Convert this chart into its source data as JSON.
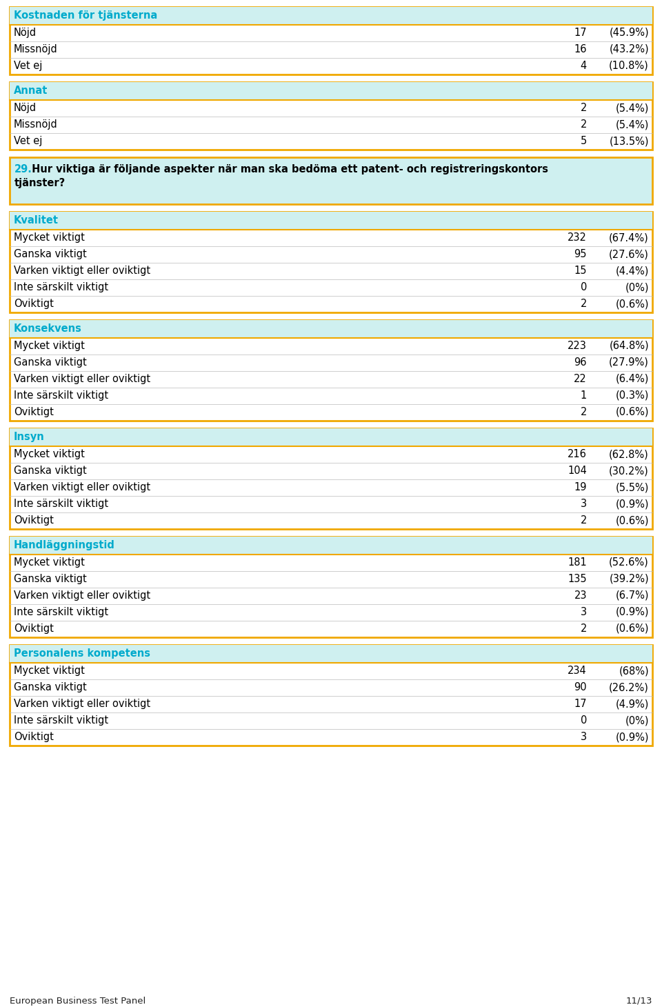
{
  "bg_color": "#ffffff",
  "header_bg": "#cff0f0",
  "border_color": "#f0a800",
  "header_text_color": "#00aacc",
  "row_text_color": "#000000",
  "footer_left": "European Business Test Panel",
  "footer_right": "11/13",
  "sections": [
    {
      "type": "normal",
      "header": "Kostnaden för tjänsterna",
      "rows": [
        {
          "label": "Nöjd",
          "value": "17",
          "pct": "(45.9%)"
        },
        {
          "label": "Missnöjd",
          "value": "16",
          "pct": "(43.2%)"
        },
        {
          "label": "Vet ej",
          "value": "4",
          "pct": "(10.8%)"
        }
      ]
    },
    {
      "type": "normal",
      "header": "Annat",
      "rows": [
        {
          "label": "Nöjd",
          "value": "2",
          "pct": "(5.4%)"
        },
        {
          "label": "Missnöjd",
          "value": "2",
          "pct": "(5.4%)"
        },
        {
          "label": "Vet ej",
          "value": "5",
          "pct": "(13.5%)"
        }
      ]
    },
    {
      "type": "question",
      "header": "29.",
      "header_rest": " Hur viktiga är följande aspekter när man ska bedöma ett patent- och registreringskontors tjänster?",
      "line2": "tjänster?",
      "rows": []
    },
    {
      "type": "normal",
      "header": "Kvalitet",
      "rows": [
        {
          "label": "Mycket viktigt",
          "value": "232",
          "pct": "(67.4%)"
        },
        {
          "label": "Ganska viktigt",
          "value": "95",
          "pct": "(27.6%)"
        },
        {
          "label": "Varken viktigt eller oviktigt",
          "value": "15",
          "pct": "(4.4%)"
        },
        {
          "label": "Inte särskilt viktigt",
          "value": "0",
          "pct": "(0%)"
        },
        {
          "label": "Oviktigt",
          "value": "2",
          "pct": "(0.6%)"
        }
      ]
    },
    {
      "type": "normal",
      "header": "Konsekvens",
      "rows": [
        {
          "label": "Mycket viktigt",
          "value": "223",
          "pct": "(64.8%)"
        },
        {
          "label": "Ganska viktigt",
          "value": "96",
          "pct": "(27.9%)"
        },
        {
          "label": "Varken viktigt eller oviktigt",
          "value": "22",
          "pct": "(6.4%)"
        },
        {
          "label": "Inte särskilt viktigt",
          "value": "1",
          "pct": "(0.3%)"
        },
        {
          "label": "Oviktigt",
          "value": "2",
          "pct": "(0.6%)"
        }
      ]
    },
    {
      "type": "normal",
      "header": "Insyn",
      "rows": [
        {
          "label": "Mycket viktigt",
          "value": "216",
          "pct": "(62.8%)"
        },
        {
          "label": "Ganska viktigt",
          "value": "104",
          "pct": "(30.2%)"
        },
        {
          "label": "Varken viktigt eller oviktigt",
          "value": "19",
          "pct": "(5.5%)"
        },
        {
          "label": "Inte särskilt viktigt",
          "value": "3",
          "pct": "(0.9%)"
        },
        {
          "label": "Oviktigt",
          "value": "2",
          "pct": "(0.6%)"
        }
      ]
    },
    {
      "type": "normal",
      "header": "Handläggningstid",
      "rows": [
        {
          "label": "Mycket viktigt",
          "value": "181",
          "pct": "(52.6%)"
        },
        {
          "label": "Ganska viktigt",
          "value": "135",
          "pct": "(39.2%)"
        },
        {
          "label": "Varken viktigt eller oviktigt",
          "value": "23",
          "pct": "(6.7%)"
        },
        {
          "label": "Inte särskilt viktigt",
          "value": "3",
          "pct": "(0.9%)"
        },
        {
          "label": "Oviktigt",
          "value": "2",
          "pct": "(0.6%)"
        }
      ]
    },
    {
      "type": "normal",
      "header": "Personalens kompetens",
      "rows": [
        {
          "label": "Mycket viktigt",
          "value": "234",
          "pct": "(68%)"
        },
        {
          "label": "Ganska viktigt",
          "value": "90",
          "pct": "(26.2%)"
        },
        {
          "label": "Varken viktigt eller oviktigt",
          "value": "17",
          "pct": "(4.9%)"
        },
        {
          "label": "Inte särskilt viktigt",
          "value": "0",
          "pct": "(0%)"
        },
        {
          "label": "Oviktigt",
          "value": "3",
          "pct": "(0.9%)"
        }
      ]
    }
  ]
}
